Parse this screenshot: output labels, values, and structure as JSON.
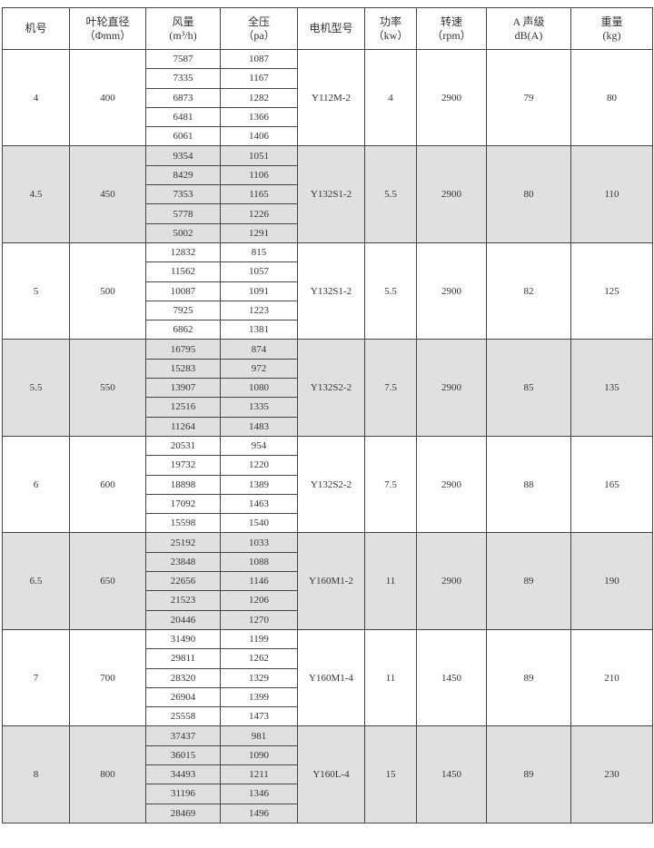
{
  "headers": [
    {
      "line1": "机号",
      "line2": ""
    },
    {
      "line1": "叶轮直径",
      "line2": "（Φmm）"
    },
    {
      "line1": "风量",
      "line2": "(m³/h)"
    },
    {
      "line1": "全压",
      "line2": "（pa）"
    },
    {
      "line1": "电机型号",
      "line2": ""
    },
    {
      "line1": "功率",
      "line2": "（kw）"
    },
    {
      "line1": "转速",
      "line2": "（rpm）"
    },
    {
      "line1": "A 声级",
      "line2": "dB(A)"
    },
    {
      "line1": "重量",
      "line2": "(kg)"
    }
  ],
  "band_colors": {
    "white": "#ffffff",
    "gray": "#e0e0e0"
  },
  "groups": [
    {
      "model_no": "4",
      "impeller_dia": "400",
      "airflow": [
        "7587",
        "7335",
        "6873",
        "6481",
        "6061"
      ],
      "pressure": [
        "1087",
        "1167",
        "1282",
        "1366",
        "1406"
      ],
      "motor": "Y112M-2",
      "power": "4",
      "speed": "2900",
      "noise": "79",
      "weight": "80"
    },
    {
      "model_no": "4.5",
      "impeller_dia": "450",
      "airflow": [
        "9354",
        "8429",
        "7353",
        "5778",
        "5002"
      ],
      "pressure": [
        "1051",
        "1106",
        "1165",
        "1226",
        "1291"
      ],
      "motor": "Y132S1-2",
      "power": "5.5",
      "speed": "2900",
      "noise": "80",
      "weight": "110"
    },
    {
      "model_no": "5",
      "impeller_dia": "500",
      "airflow": [
        "12832",
        "11562",
        "10087",
        "7925",
        "6862"
      ],
      "pressure": [
        "815",
        "1057",
        "1091",
        "1223",
        "1381"
      ],
      "motor": "Y132S1-2",
      "power": "5.5",
      "speed": "2900",
      "noise": "82",
      "weight": "125"
    },
    {
      "model_no": "5.5",
      "impeller_dia": "550",
      "airflow": [
        "16795",
        "15283",
        "13907",
        "12516",
        "11264"
      ],
      "pressure": [
        "874",
        "972",
        "1080",
        "1335",
        "1483"
      ],
      "motor": "Y132S2-2",
      "power": "7.5",
      "speed": "2900",
      "noise": "85",
      "weight": "135"
    },
    {
      "model_no": "6",
      "impeller_dia": "600",
      "airflow": [
        "20531",
        "19732",
        "18898",
        "17092",
        "15598"
      ],
      "pressure": [
        "954",
        "1220",
        "1389",
        "1463",
        "1540"
      ],
      "motor": "Y132S2-2",
      "power": "7.5",
      "speed": "2900",
      "noise": "88",
      "weight": "165"
    },
    {
      "model_no": "6.5",
      "impeller_dia": "650",
      "airflow": [
        "25192",
        "23848",
        "22656",
        "21523",
        "20446"
      ],
      "pressure": [
        "1033",
        "1088",
        "1146",
        "1206",
        "1270"
      ],
      "motor": "Y160M1-2",
      "power": "11",
      "speed": "2900",
      "noise": "89",
      "weight": "190"
    },
    {
      "model_no": "7",
      "impeller_dia": "700",
      "airflow": [
        "31490",
        "29811",
        "28320",
        "26904",
        "25558"
      ],
      "pressure": [
        "1199",
        "1262",
        "1329",
        "1399",
        "1473"
      ],
      "motor": "Y160M1-4",
      "power": "11",
      "speed": "1450",
      "noise": "89",
      "weight": "210"
    },
    {
      "model_no": "8",
      "impeller_dia": "800",
      "airflow": [
        "37437",
        "36015",
        "34493",
        "31196",
        "28469"
      ],
      "pressure": [
        "981",
        "1090",
        "1211",
        "1346",
        "1496"
      ],
      "motor": "Y160L-4",
      "power": "15",
      "speed": "1450",
      "noise": "89",
      "weight": "230"
    }
  ]
}
